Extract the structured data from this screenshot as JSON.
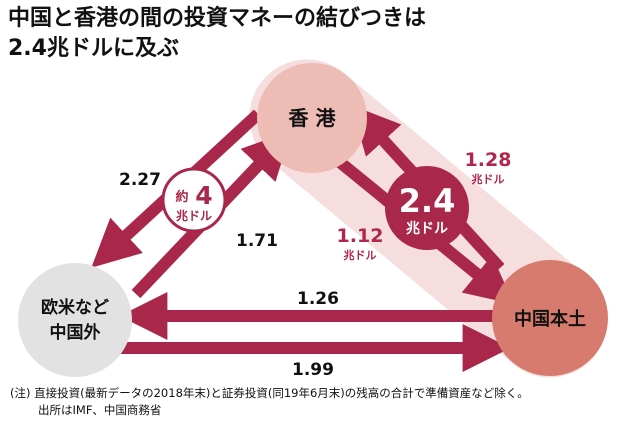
{
  "title_line1": "中国と香港の間の投資マネーの結びつきは",
  "title_line2": "2.4兆ドルに及ぶ",
  "nodes": {
    "hongkong": "香 港",
    "west_line1": "欧米など",
    "west_line2": "中国外",
    "mainland": "中国本土"
  },
  "flows": {
    "west_to_hk": "2.27",
    "hk_to_west": "1.71",
    "hk_to_mainland": "1.12",
    "mainland_to_hk": "1.28",
    "mainland_to_west": "1.26",
    "west_to_mainland": "1.99",
    "unit": "兆ドル"
  },
  "badges": {
    "west_hk_prefix": "約",
    "west_hk_value": "4",
    "west_hk_unit": "兆ドル",
    "hk_mainland_value": "2.4",
    "hk_mainland_unit": "兆ドル"
  },
  "note": {
    "line1": "(注) 直接投資(最新データの2018年末)と証券投資(同19年6月末)の残高の合計で準備資産など除く。",
    "line2": "出所はIMF、中国商務省"
  },
  "colors": {
    "arrow": "#a8274a",
    "band": "#f5dedd",
    "hk_node": "#edbcb5",
    "west_node": "#e2e2e2",
    "mainland_node": "#d67b6d",
    "label": "#b2264c"
  }
}
